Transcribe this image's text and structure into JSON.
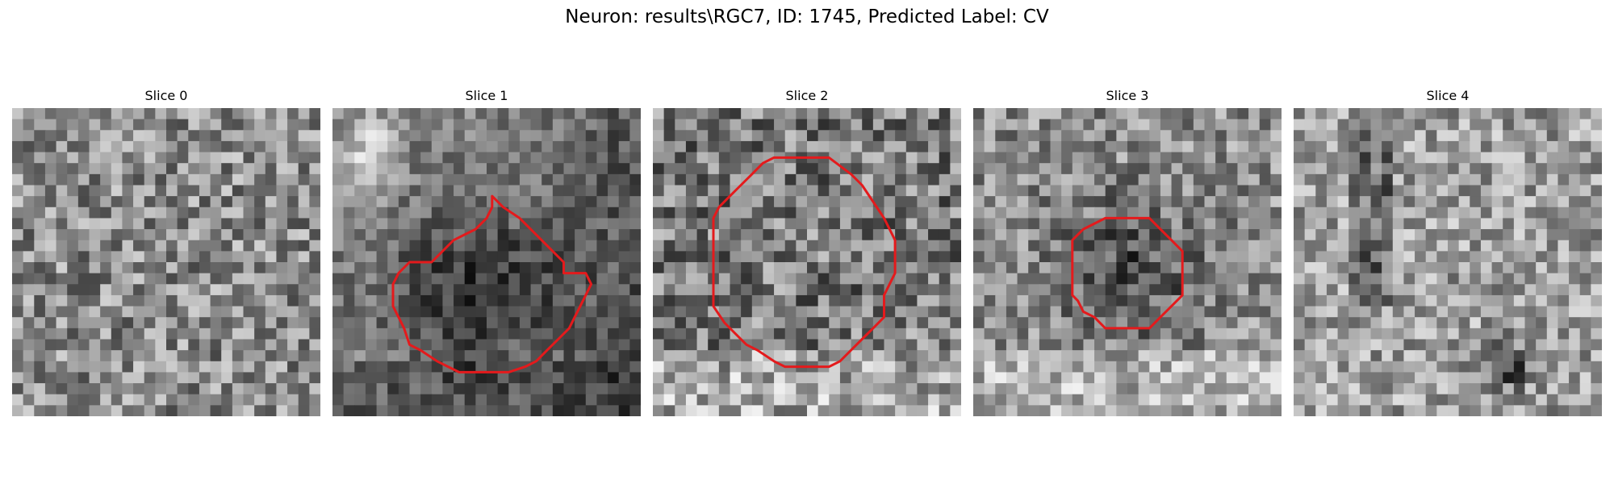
{
  "figure": {
    "title": "Neuron: results\\RGC7, ID: 1745, Predicted Label: CV"
  },
  "colors": {
    "background": "#ffffff",
    "contour": "#e41a1c"
  },
  "slices": [
    {
      "label": "Slice 0",
      "has_contour": false
    },
    {
      "label": "Slice 1",
      "has_contour": true
    },
    {
      "label": "Slice 2",
      "has_contour": true
    },
    {
      "label": "Slice 3",
      "has_contour": true
    },
    {
      "label": "Slice 4",
      "has_contour": false
    }
  ]
}
